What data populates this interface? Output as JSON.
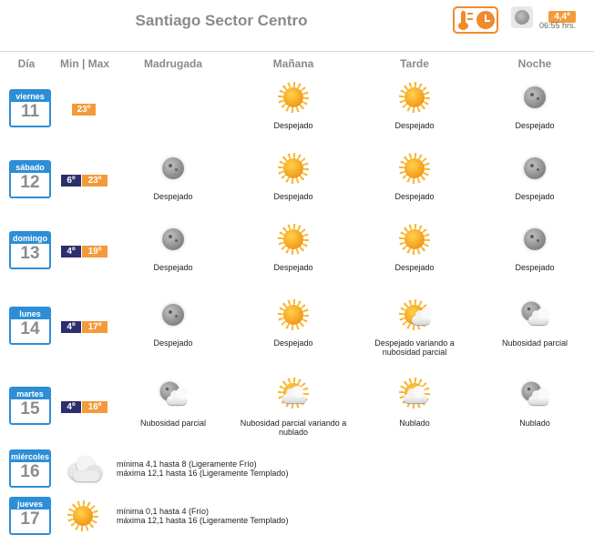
{
  "header": {
    "title": "Santiago Sector Centro",
    "current_icon": "moon-clear-icon",
    "current_temp": "4,4º",
    "current_time": "06:55 hrs."
  },
  "columns": {
    "dia": "Día",
    "minmax": "Min | Max",
    "madrugada": "Madrugada",
    "manana": "Mañana",
    "tarde": "Tarde",
    "noche": "Noche"
  },
  "colors": {
    "accent_blue": "#2d8ed6",
    "max_orange": "#f39a3a",
    "min_navy": "#2b2f6b"
  },
  "days": [
    {
      "name": "viernes",
      "number": "11",
      "min": "",
      "max": "23º",
      "madrugada": {
        "icon": "",
        "label": ""
      },
      "manana": {
        "icon": "sun-icon",
        "label": "Despejado"
      },
      "tarde": {
        "icon": "sun-icon",
        "label": "Despejado"
      },
      "noche": {
        "icon": "moon-icon",
        "label": "Despejado"
      }
    },
    {
      "name": "sábado",
      "number": "12",
      "min": "6º",
      "max": "23º",
      "madrugada": {
        "icon": "moon-icon",
        "label": "Despejado"
      },
      "manana": {
        "icon": "sun-icon",
        "label": "Despejado"
      },
      "tarde": {
        "icon": "sun-icon",
        "label": "Despejado"
      },
      "noche": {
        "icon": "moon-icon",
        "label": "Despejado"
      }
    },
    {
      "name": "domingo",
      "number": "13",
      "min": "4º",
      "max": "19º",
      "madrugada": {
        "icon": "moon-icon",
        "label": "Despejado"
      },
      "manana": {
        "icon": "sun-icon",
        "label": "Despejado"
      },
      "tarde": {
        "icon": "sun-icon",
        "label": "Despejado"
      },
      "noche": {
        "icon": "moon-icon",
        "label": "Despejado"
      }
    },
    {
      "name": "lunes",
      "number": "14",
      "min": "4º",
      "max": "17º",
      "madrugada": {
        "icon": "moon-icon",
        "label": "Despejado"
      },
      "manana": {
        "icon": "sun-icon",
        "label": "Despejado"
      },
      "tarde": {
        "icon": "sun-small-cloud-icon",
        "label": "Despejado variando a nubosidad parcial"
      },
      "noche": {
        "icon": "moon-cloud-icon",
        "label": "Nubosidad parcial"
      }
    },
    {
      "name": "martes",
      "number": "15",
      "min": "4º",
      "max": "16º",
      "madrugada": {
        "icon": "moon-cloud-icon",
        "label": "Nubosidad parcial"
      },
      "manana": {
        "icon": "sun-cloud-icon",
        "label": "Nubosidad parcial variando a nublado"
      },
      "tarde": {
        "icon": "sun-cloud-icon",
        "label": "Nublado"
      },
      "noche": {
        "icon": "moon-cloud-icon",
        "label": "Nublado"
      }
    }
  ],
  "extended": [
    {
      "name": "miércoles",
      "number": "16",
      "icon": "cloud-icon",
      "line1": "mínima 4,1 hasta 8 (Ligeramente Frío)",
      "line2": "máxima 12,1 hasta 16 (Ligeramente Templado)"
    },
    {
      "name": "jueves",
      "number": "17",
      "icon": "sun-icon",
      "line1": "mínima 0,1 hasta 4 (Frío)",
      "line2": "máxima 12,1 hasta 16 (Ligeramente Templado)"
    }
  ]
}
